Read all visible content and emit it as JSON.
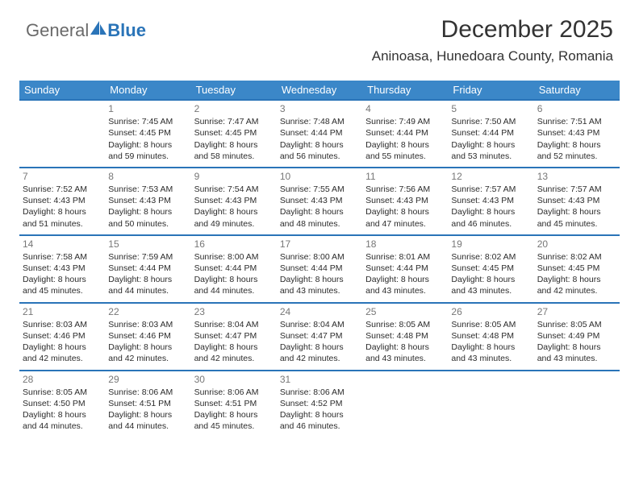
{
  "logo": {
    "part1": "General",
    "part2": "Blue"
  },
  "header": {
    "month": "December 2025",
    "location": "Aninoasa, Hunedoara County, Romania"
  },
  "colors": {
    "header_bg": "#3b87c8",
    "accent": "#2a74b8",
    "logo_gray": "#6a6a6a"
  },
  "weekdays": [
    "Sunday",
    "Monday",
    "Tuesday",
    "Wednesday",
    "Thursday",
    "Friday",
    "Saturday"
  ],
  "weeks": [
    [
      null,
      {
        "n": "1",
        "sr": "Sunrise: 7:45 AM",
        "ss": "Sunset: 4:45 PM",
        "dl1": "Daylight: 8 hours",
        "dl2": "and 59 minutes."
      },
      {
        "n": "2",
        "sr": "Sunrise: 7:47 AM",
        "ss": "Sunset: 4:45 PM",
        "dl1": "Daylight: 8 hours",
        "dl2": "and 58 minutes."
      },
      {
        "n": "3",
        "sr": "Sunrise: 7:48 AM",
        "ss": "Sunset: 4:44 PM",
        "dl1": "Daylight: 8 hours",
        "dl2": "and 56 minutes."
      },
      {
        "n": "4",
        "sr": "Sunrise: 7:49 AM",
        "ss": "Sunset: 4:44 PM",
        "dl1": "Daylight: 8 hours",
        "dl2": "and 55 minutes."
      },
      {
        "n": "5",
        "sr": "Sunrise: 7:50 AM",
        "ss": "Sunset: 4:44 PM",
        "dl1": "Daylight: 8 hours",
        "dl2": "and 53 minutes."
      },
      {
        "n": "6",
        "sr": "Sunrise: 7:51 AM",
        "ss": "Sunset: 4:43 PM",
        "dl1": "Daylight: 8 hours",
        "dl2": "and 52 minutes."
      }
    ],
    [
      {
        "n": "7",
        "sr": "Sunrise: 7:52 AM",
        "ss": "Sunset: 4:43 PM",
        "dl1": "Daylight: 8 hours",
        "dl2": "and 51 minutes."
      },
      {
        "n": "8",
        "sr": "Sunrise: 7:53 AM",
        "ss": "Sunset: 4:43 PM",
        "dl1": "Daylight: 8 hours",
        "dl2": "and 50 minutes."
      },
      {
        "n": "9",
        "sr": "Sunrise: 7:54 AM",
        "ss": "Sunset: 4:43 PM",
        "dl1": "Daylight: 8 hours",
        "dl2": "and 49 minutes."
      },
      {
        "n": "10",
        "sr": "Sunrise: 7:55 AM",
        "ss": "Sunset: 4:43 PM",
        "dl1": "Daylight: 8 hours",
        "dl2": "and 48 minutes."
      },
      {
        "n": "11",
        "sr": "Sunrise: 7:56 AM",
        "ss": "Sunset: 4:43 PM",
        "dl1": "Daylight: 8 hours",
        "dl2": "and 47 minutes."
      },
      {
        "n": "12",
        "sr": "Sunrise: 7:57 AM",
        "ss": "Sunset: 4:43 PM",
        "dl1": "Daylight: 8 hours",
        "dl2": "and 46 minutes."
      },
      {
        "n": "13",
        "sr": "Sunrise: 7:57 AM",
        "ss": "Sunset: 4:43 PM",
        "dl1": "Daylight: 8 hours",
        "dl2": "and 45 minutes."
      }
    ],
    [
      {
        "n": "14",
        "sr": "Sunrise: 7:58 AM",
        "ss": "Sunset: 4:43 PM",
        "dl1": "Daylight: 8 hours",
        "dl2": "and 45 minutes."
      },
      {
        "n": "15",
        "sr": "Sunrise: 7:59 AM",
        "ss": "Sunset: 4:44 PM",
        "dl1": "Daylight: 8 hours",
        "dl2": "and 44 minutes."
      },
      {
        "n": "16",
        "sr": "Sunrise: 8:00 AM",
        "ss": "Sunset: 4:44 PM",
        "dl1": "Daylight: 8 hours",
        "dl2": "and 44 minutes."
      },
      {
        "n": "17",
        "sr": "Sunrise: 8:00 AM",
        "ss": "Sunset: 4:44 PM",
        "dl1": "Daylight: 8 hours",
        "dl2": "and 43 minutes."
      },
      {
        "n": "18",
        "sr": "Sunrise: 8:01 AM",
        "ss": "Sunset: 4:44 PM",
        "dl1": "Daylight: 8 hours",
        "dl2": "and 43 minutes."
      },
      {
        "n": "19",
        "sr": "Sunrise: 8:02 AM",
        "ss": "Sunset: 4:45 PM",
        "dl1": "Daylight: 8 hours",
        "dl2": "and 43 minutes."
      },
      {
        "n": "20",
        "sr": "Sunrise: 8:02 AM",
        "ss": "Sunset: 4:45 PM",
        "dl1": "Daylight: 8 hours",
        "dl2": "and 42 minutes."
      }
    ],
    [
      {
        "n": "21",
        "sr": "Sunrise: 8:03 AM",
        "ss": "Sunset: 4:46 PM",
        "dl1": "Daylight: 8 hours",
        "dl2": "and 42 minutes."
      },
      {
        "n": "22",
        "sr": "Sunrise: 8:03 AM",
        "ss": "Sunset: 4:46 PM",
        "dl1": "Daylight: 8 hours",
        "dl2": "and 42 minutes."
      },
      {
        "n": "23",
        "sr": "Sunrise: 8:04 AM",
        "ss": "Sunset: 4:47 PM",
        "dl1": "Daylight: 8 hours",
        "dl2": "and 42 minutes."
      },
      {
        "n": "24",
        "sr": "Sunrise: 8:04 AM",
        "ss": "Sunset: 4:47 PM",
        "dl1": "Daylight: 8 hours",
        "dl2": "and 42 minutes."
      },
      {
        "n": "25",
        "sr": "Sunrise: 8:05 AM",
        "ss": "Sunset: 4:48 PM",
        "dl1": "Daylight: 8 hours",
        "dl2": "and 43 minutes."
      },
      {
        "n": "26",
        "sr": "Sunrise: 8:05 AM",
        "ss": "Sunset: 4:48 PM",
        "dl1": "Daylight: 8 hours",
        "dl2": "and 43 minutes."
      },
      {
        "n": "27",
        "sr": "Sunrise: 8:05 AM",
        "ss": "Sunset: 4:49 PM",
        "dl1": "Daylight: 8 hours",
        "dl2": "and 43 minutes."
      }
    ],
    [
      {
        "n": "28",
        "sr": "Sunrise: 8:05 AM",
        "ss": "Sunset: 4:50 PM",
        "dl1": "Daylight: 8 hours",
        "dl2": "and 44 minutes."
      },
      {
        "n": "29",
        "sr": "Sunrise: 8:06 AM",
        "ss": "Sunset: 4:51 PM",
        "dl1": "Daylight: 8 hours",
        "dl2": "and 44 minutes."
      },
      {
        "n": "30",
        "sr": "Sunrise: 8:06 AM",
        "ss": "Sunset: 4:51 PM",
        "dl1": "Daylight: 8 hours",
        "dl2": "and 45 minutes."
      },
      {
        "n": "31",
        "sr": "Sunrise: 8:06 AM",
        "ss": "Sunset: 4:52 PM",
        "dl1": "Daylight: 8 hours",
        "dl2": "and 46 minutes."
      },
      null,
      null,
      null
    ]
  ]
}
